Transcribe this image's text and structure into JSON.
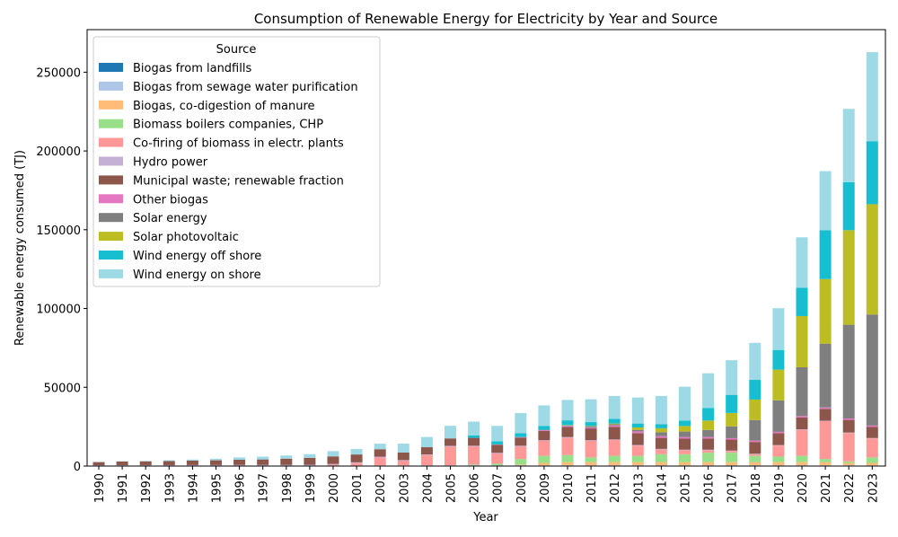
{
  "chart_data": {
    "type": "bar",
    "stacked": true,
    "title": "Consumption of Renewable Energy for Electricity by Year and Source",
    "xlabel": "Year",
    "ylabel": "Renewable energy consumed (TJ)",
    "ylim": [
      0,
      277000
    ],
    "yticks": [
      0,
      50000,
      100000,
      150000,
      200000,
      250000
    ],
    "legend_title": "Source",
    "legend_position": "top-left",
    "categories": [
      "1990",
      "1991",
      "1992",
      "1993",
      "1994",
      "1995",
      "1996",
      "1997",
      "1998",
      "1999",
      "2000",
      "2001",
      "2002",
      "2003",
      "2004",
      "2005",
      "2006",
      "2007",
      "2008",
      "2009",
      "2010",
      "2011",
      "2012",
      "2013",
      "2014",
      "2015",
      "2016",
      "2017",
      "2018",
      "2019",
      "2020",
      "2021",
      "2022",
      "2023"
    ],
    "series": [
      {
        "name": "Biogas from landfills",
        "color": "#1f77b4",
        "values": [
          0,
          0,
          0,
          0,
          0,
          0,
          0,
          0,
          0,
          0,
          0,
          0,
          0,
          0,
          0,
          0,
          0,
          0,
          0,
          0,
          0,
          0,
          0,
          0,
          0,
          0,
          0,
          0,
          0,
          0,
          0,
          0,
          0,
          0
        ]
      },
      {
        "name": "Biogas from sewage water purification",
        "color": "#aec7e8",
        "values": [
          200,
          200,
          200,
          200,
          250,
          250,
          300,
          300,
          300,
          350,
          350,
          350,
          400,
          400,
          450,
          450,
          500,
          500,
          500,
          500,
          500,
          500,
          500,
          500,
          500,
          500,
          500,
          500,
          500,
          500,
          500,
          500,
          500,
          500
        ]
      },
      {
        "name": "Biogas, co-digestion of manure",
        "color": "#ffbb78",
        "values": [
          0,
          0,
          0,
          0,
          0,
          0,
          0,
          0,
          0,
          0,
          0,
          0,
          0,
          0,
          0,
          0,
          0,
          0,
          500,
          1500,
          2000,
          2000,
          2000,
          2000,
          2000,
          2000,
          2000,
          2000,
          2000,
          2000,
          2000,
          2000,
          1500,
          1500
        ]
      },
      {
        "name": "Biomass boilers companies, CHP",
        "color": "#98df8a",
        "values": [
          0,
          0,
          0,
          0,
          0,
          0,
          0,
          0,
          0,
          0,
          0,
          0,
          0,
          0,
          0,
          0,
          500,
          1000,
          3500,
          4500,
          4500,
          3000,
          4000,
          4000,
          5000,
          5000,
          6000,
          6000,
          4000,
          3500,
          4000,
          2000,
          1000,
          3500
        ]
      },
      {
        "name": "Co-firing of biomass in electr. plants",
        "color": "#ff9896",
        "values": [
          0,
          0,
          0,
          0,
          0,
          0,
          0,
          0,
          0,
          0,
          500,
          1500,
          5000,
          3000,
          6500,
          12000,
          11500,
          6500,
          8000,
          9500,
          11000,
          10500,
          10000,
          6500,
          3000,
          2500,
          1500,
          1000,
          1000,
          7000,
          16500,
          24000,
          18000,
          12000
        ]
      },
      {
        "name": "Hydro power",
        "color": "#c5b0d5",
        "values": [
          300,
          400,
          400,
          400,
          400,
          400,
          400,
          400,
          400,
          400,
          500,
          500,
          500,
          400,
          400,
          400,
          400,
          400,
          400,
          400,
          400,
          400,
          400,
          400,
          400,
          400,
          400,
          300,
          300,
          300,
          300,
          300,
          300,
          300
        ]
      },
      {
        "name": "Municipal waste; renewable fraction",
        "color": "#8c564b",
        "values": [
          2000,
          2300,
          2400,
          2600,
          2800,
          3000,
          3300,
          3500,
          4000,
          4500,
          4800,
          5000,
          4800,
          4800,
          4600,
          4700,
          5000,
          5100,
          5200,
          6000,
          6500,
          7500,
          8000,
          7500,
          7000,
          7000,
          7000,
          7000,
          7500,
          7500,
          7500,
          7500,
          8000,
          7000
        ]
      },
      {
        "name": "Other biogas",
        "color": "#e377c2",
        "values": [
          0,
          0,
          0,
          0,
          0,
          0,
          0,
          0,
          0,
          0,
          0,
          0,
          0,
          0,
          0,
          0,
          0,
          200,
          300,
          400,
          600,
          700,
          900,
          1100,
          1100,
          1000,
          1000,
          900,
          900,
          900,
          900,
          900,
          900,
          900
        ]
      },
      {
        "name": "Solar energy",
        "color": "#7f7f7f",
        "values": [
          0,
          0,
          0,
          0,
          0,
          0,
          0,
          0,
          0,
          0,
          0,
          0,
          0,
          0,
          0,
          0,
          0,
          0,
          0,
          200,
          300,
          500,
          700,
          1000,
          2500,
          3500,
          4500,
          7500,
          13000,
          20000,
          31000,
          40500,
          59500,
          70500
        ]
      },
      {
        "name": "Solar photovoltaic",
        "color": "#bcbd22",
        "values": [
          0,
          0,
          0,
          0,
          0,
          0,
          0,
          0,
          0,
          0,
          0,
          0,
          0,
          0,
          0,
          0,
          0,
          0,
          0,
          0,
          200,
          300,
          500,
          1500,
          2500,
          3500,
          6000,
          8500,
          13000,
          19500,
          32500,
          41000,
          60000,
          70000
        ]
      },
      {
        "name": "Wind energy off shore",
        "color": "#17becf",
        "values": [
          0,
          0,
          0,
          0,
          0,
          0,
          0,
          0,
          0,
          0,
          0,
          0,
          0,
          0,
          0,
          0,
          1500,
          2000,
          2500,
          2500,
          3000,
          2500,
          3000,
          2500,
          2500,
          3500,
          8000,
          11500,
          12500,
          12500,
          18000,
          31000,
          30500,
          40000
        ]
      },
      {
        "name": "Wind energy on shore",
        "color": "#9edae5",
        "values": [
          200,
          200,
          300,
          500,
          700,
          1000,
          1500,
          1800,
          2000,
          2300,
          3300,
          3500,
          3500,
          5600,
          6500,
          8000,
          8800,
          9800,
          12700,
          13000,
          13000,
          14500,
          14500,
          16500,
          18000,
          21500,
          22000,
          22000,
          23500,
          26500,
          32000,
          37500,
          46500,
          56500
        ]
      }
    ]
  }
}
